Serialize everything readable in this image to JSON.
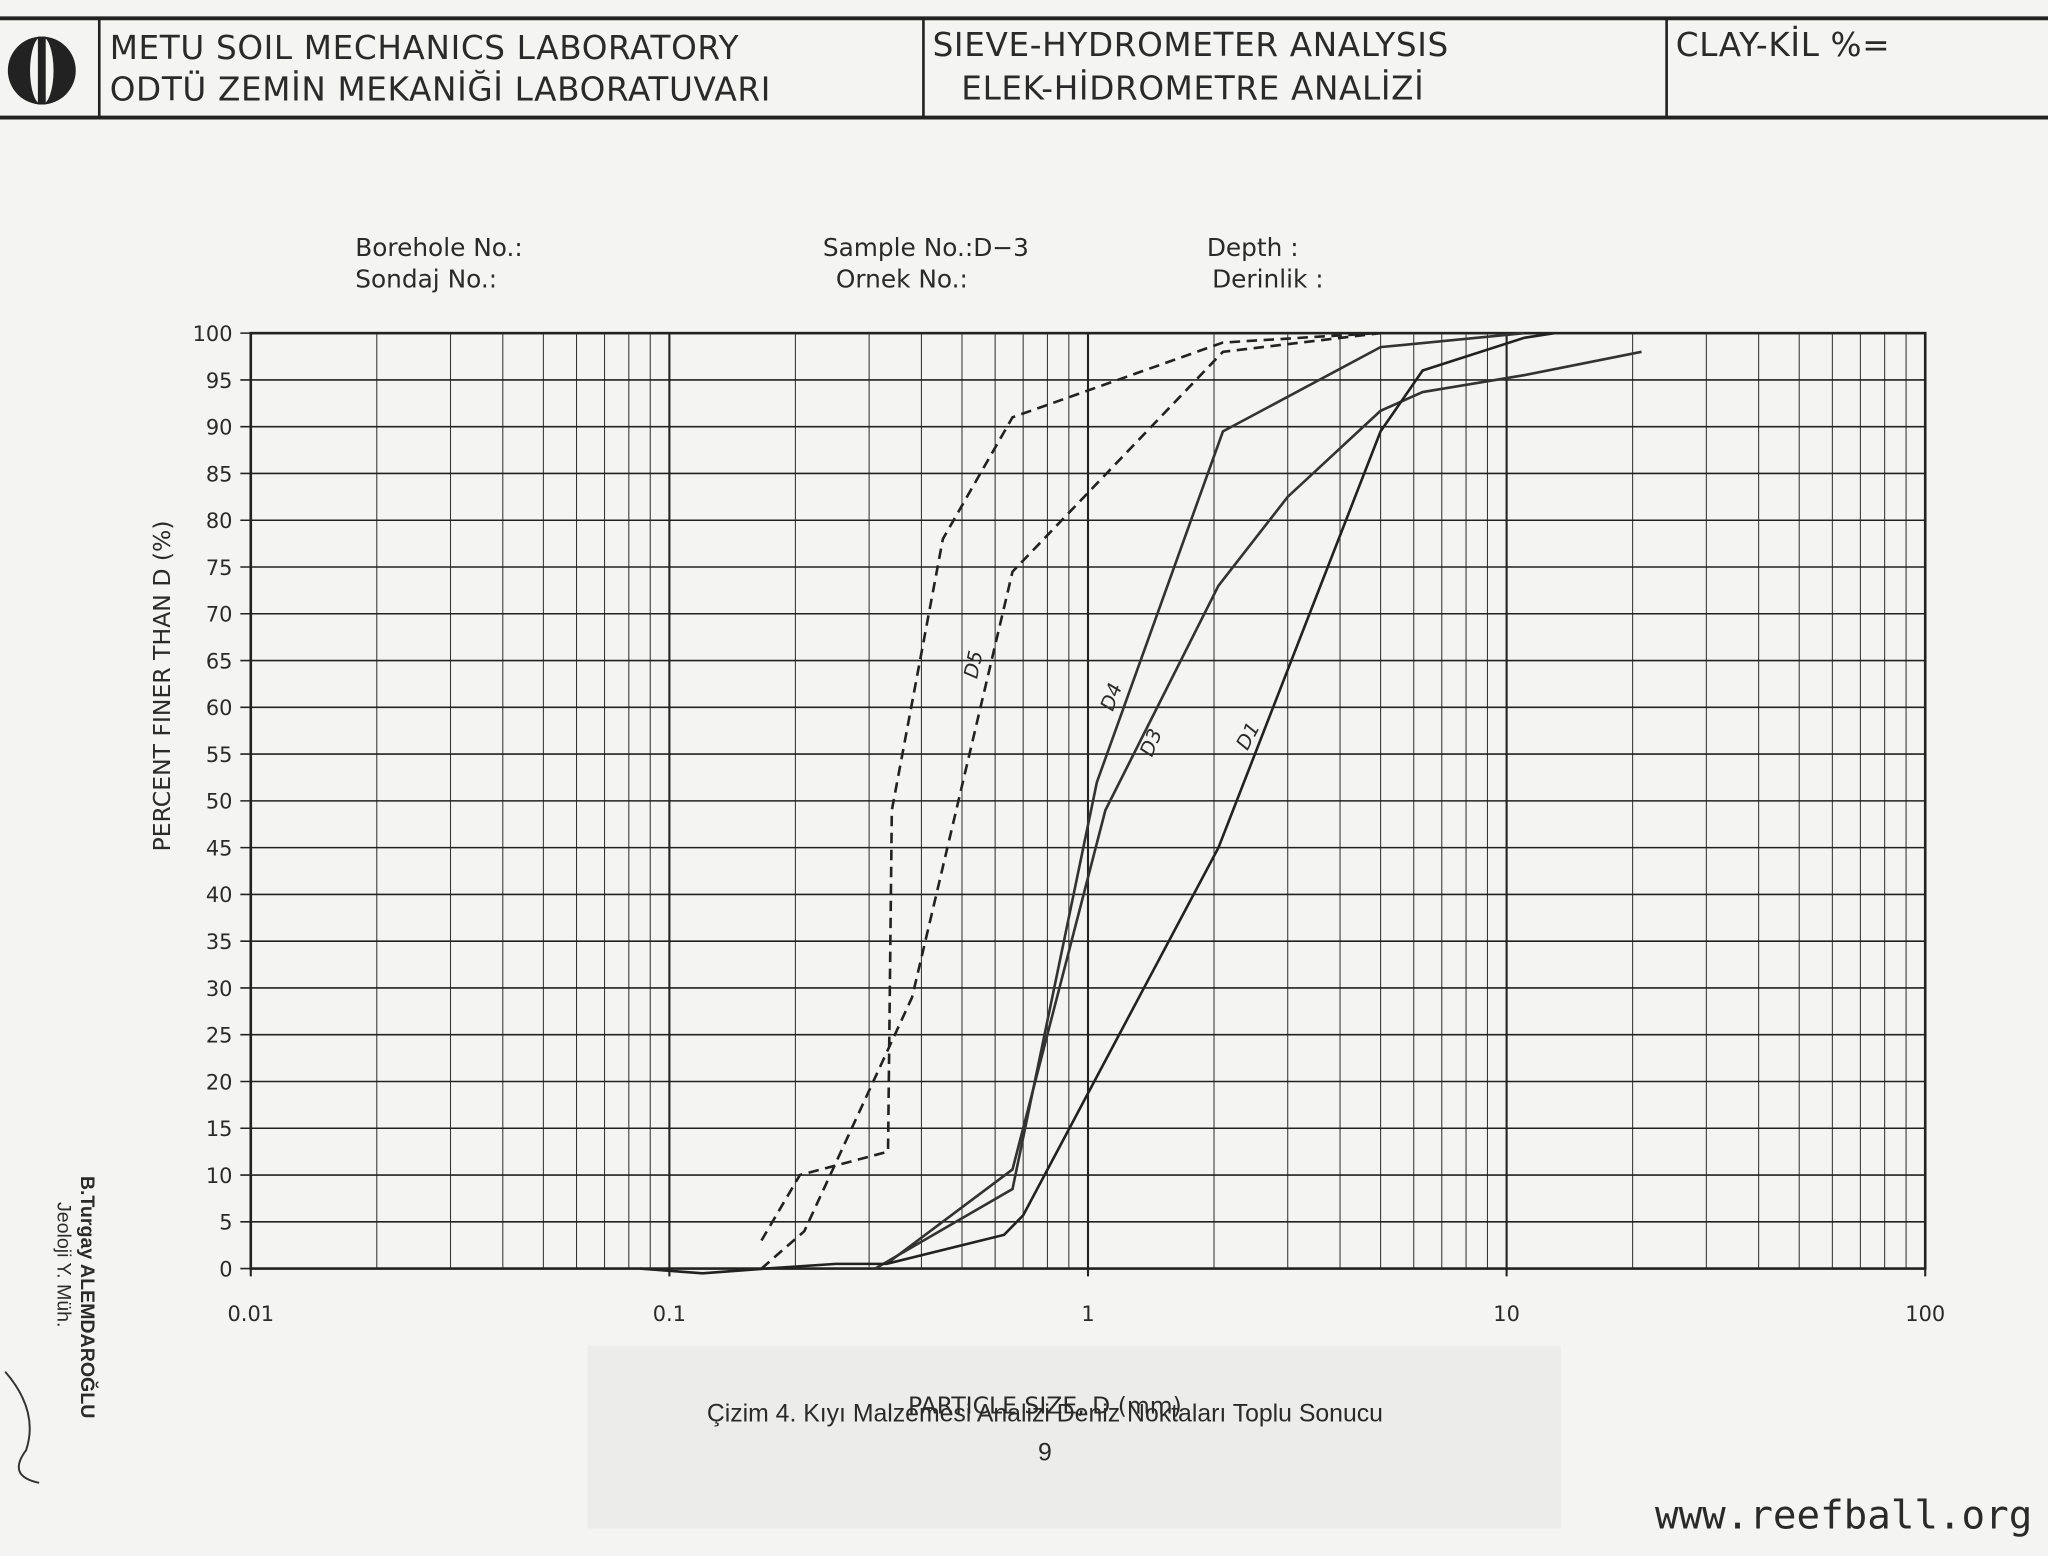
{
  "header": {
    "lab_en": "METU SOIL MECHANICS LABORATORY",
    "lab_tr": "ODTÜ ZEMİN MEKANİĞİ LABORATUVARI",
    "test_en": "SIEVE-HYDROMETER ANALYSIS",
    "test_tr": "ELEK-HİDROMETRE ANALİZİ",
    "clay": "CLAY-KİL %="
  },
  "fields": {
    "borehole": "Borehole No.:",
    "sondaj": "Sondaj No.:",
    "sample": "Sample No.:D−3",
    "ornek": "Ornek No.:",
    "depth": "Depth :",
    "derinlik": "Derinlik :"
  },
  "chart_data": {
    "type": "line",
    "y_label": "PERCENT FINER THAN D (%)",
    "x_label": "PARTICLE SIZE, D (mm)",
    "log_x": true,
    "grid": true,
    "xlim": [
      0.01,
      100
    ],
    "xticks": [
      0.01,
      0.1,
      1,
      10,
      100
    ],
    "ylim": [
      0,
      100
    ],
    "yticks": [
      0,
      5,
      10,
      15,
      20,
      25,
      30,
      35,
      40,
      45,
      50,
      55,
      60,
      65,
      70,
      75,
      80,
      85,
      90,
      95,
      100
    ],
    "series": [
      {
        "color": "#222222",
        "style": "dashed",
        "x": [
          0.166,
          0.205,
          0.333,
          0.34,
          0.45,
          0.66,
          2.1,
          4.9
        ],
        "values": [
          3,
          10,
          12.5,
          49,
          78,
          91,
          99,
          100
        ]
      },
      {
        "name": "D5",
        "color": "#222222",
        "style": "dashed",
        "x": [
          0.166,
          0.21,
          0.38,
          0.66,
          2.1,
          5
        ],
        "values": [
          0,
          4,
          29,
          74.5,
          98,
          100
        ]
      },
      {
        "name": "D4",
        "color": "#333333",
        "style": "solid",
        "x": [
          0.31,
          0.66,
          1.05,
          2.1,
          5,
          11
        ],
        "values": [
          0,
          8.5,
          52,
          89.5,
          98.5,
          100
        ]
      },
      {
        "name": "D3",
        "color": "#333333",
        "style": "solid",
        "x": [
          0.33,
          0.66,
          1.1,
          2.05,
          3,
          5,
          6.3,
          11,
          21
        ],
        "values": [
          0.5,
          10.6,
          49,
          73,
          82.5,
          91.7,
          93.7,
          95.5,
          98
        ]
      },
      {
        "name": "D1",
        "color": "#222222",
        "style": "solid",
        "x": [
          0.085,
          0.12,
          0.17,
          0.25,
          0.33,
          0.63,
          0.7,
          2.05,
          5,
          6.3,
          11,
          13
        ],
        "values": [
          0,
          -0.5,
          0,
          0.5,
          0.5,
          3.6,
          5.7,
          45,
          89.5,
          96,
          99.5,
          100
        ]
      }
    ]
  },
  "caption": "Çizim 4. Kıyı Malzemesi Analizi Deniz Noktaları Toplu Sonucu",
  "page_number": "9",
  "author": "B.Turgay ALEMDAROĞLU",
  "author_title": "Jeoloji Y. Müh.",
  "website": "www.reefball.org"
}
